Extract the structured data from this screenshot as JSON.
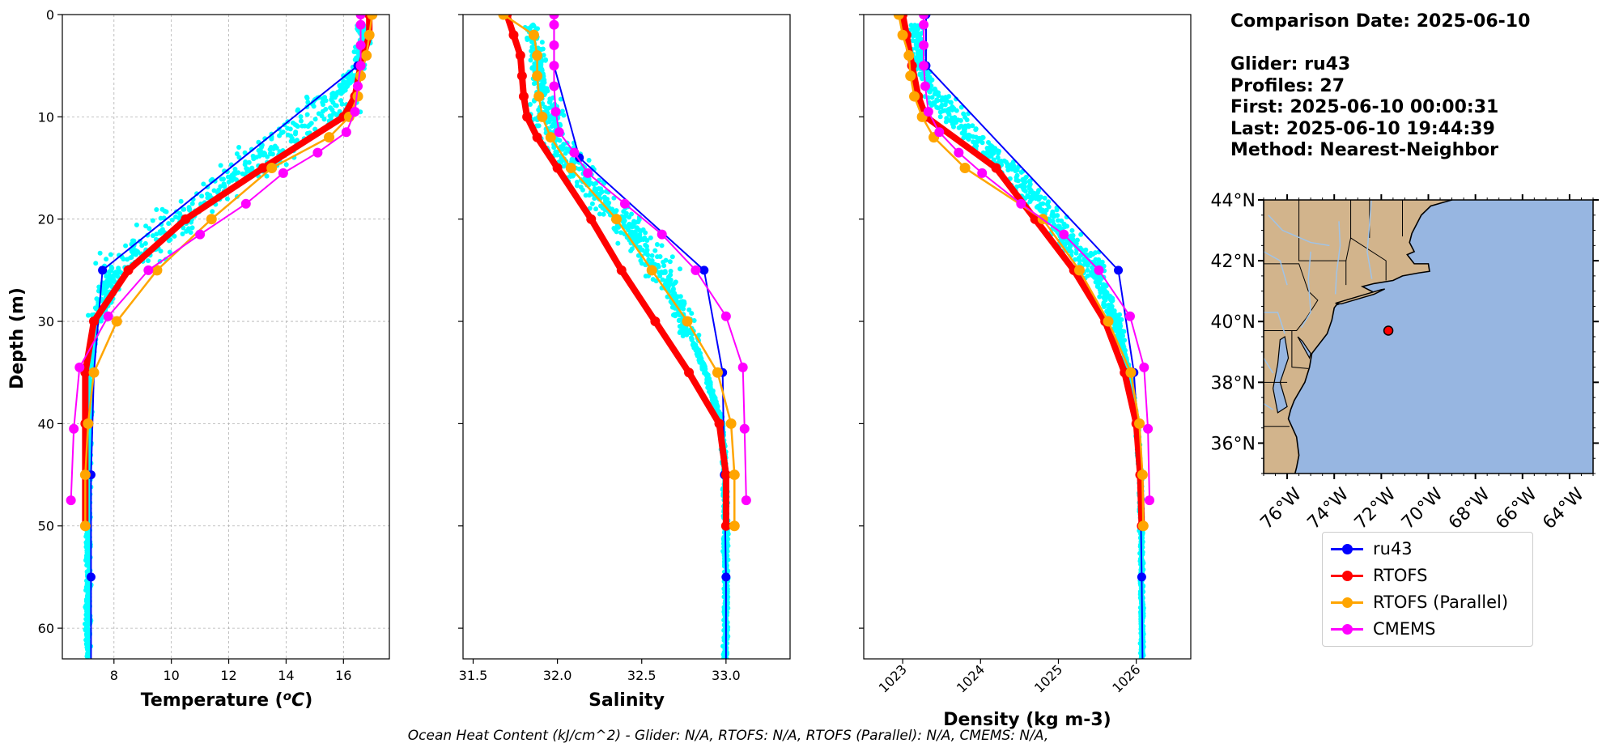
{
  "chart_data": [
    {
      "type": "line",
      "panel": "temperature",
      "xlabel": "Temperature ($^{o}C$)",
      "ylabel": "Depth (m)",
      "xlim": [
        6.2,
        17.6
      ],
      "ylim": [
        63,
        0
      ],
      "xticks": [
        8,
        10,
        12,
        14,
        16
      ],
      "yticks": [
        0,
        10,
        20,
        30,
        40,
        50,
        60
      ],
      "grid": true,
      "series": [
        {
          "name": "ru43",
          "color": "#0000ff",
          "depth": [
            5,
            25,
            35,
            45,
            55,
            63
          ],
          "values": [
            16.5,
            7.6,
            7.3,
            7.2,
            7.2,
            7.2
          ]
        },
        {
          "name": "RTOFS",
          "color": "#ff0000",
          "depth": [
            0,
            2,
            5,
            8,
            10,
            15,
            20,
            25,
            30,
            35,
            40,
            45,
            50
          ],
          "values": [
            16.9,
            16.9,
            16.6,
            16.4,
            16.0,
            13.2,
            10.5,
            8.5,
            7.3,
            7.0,
            7.0,
            7.0,
            7.0
          ]
        },
        {
          "name": "RTOFS (Parallel)",
          "color": "#ffa500",
          "depth": [
            0,
            2,
            4,
            6,
            8,
            10,
            12,
            15,
            20,
            25,
            30,
            35,
            40,
            45,
            50
          ],
          "values": [
            17.0,
            16.9,
            16.8,
            16.6,
            16.5,
            16.2,
            15.5,
            13.5,
            11.4,
            9.5,
            8.1,
            7.3,
            7.1,
            7.0,
            7.0
          ]
        },
        {
          "name": "CMEMS",
          "color": "#ff00ff",
          "depth": [
            0,
            1,
            3,
            5,
            7,
            9.5,
            11.5,
            13.5,
            15.5,
            18.5,
            21.5,
            25,
            29.5,
            34.5,
            40.5,
            47.5
          ],
          "values": [
            16.6,
            16.6,
            16.6,
            16.6,
            16.5,
            16.4,
            16.1,
            15.1,
            13.9,
            12.6,
            11.0,
            9.2,
            7.8,
            6.8,
            6.6,
            6.5
          ]
        }
      ],
      "glider_scatter": {
        "name": "glider profiles",
        "color": "#00ffff"
      }
    },
    {
      "type": "line",
      "panel": "salinity",
      "xlabel": "Salinity",
      "xlim": [
        31.44,
        33.38
      ],
      "ylim": [
        63,
        0
      ],
      "xticks": [
        31.5,
        32.0,
        32.5,
        33.0
      ],
      "grid": false,
      "series": [
        {
          "name": "ru43",
          "color": "#0000ff",
          "depth": [
            0,
            5,
            14,
            25,
            35,
            45,
            55,
            63
          ],
          "values": [
            31.98,
            31.98,
            32.13,
            32.87,
            32.98,
            32.99,
            33.0,
            33.0
          ]
        },
        {
          "name": "RTOFS",
          "color": "#ff0000",
          "depth": [
            0,
            2,
            4,
            6,
            8,
            10,
            12,
            15,
            20,
            25,
            30,
            35,
            40,
            45,
            50
          ],
          "values": [
            31.7,
            31.74,
            31.78,
            31.79,
            31.8,
            31.82,
            31.88,
            32.0,
            32.2,
            32.38,
            32.58,
            32.78,
            32.96,
            33.0,
            33.0
          ]
        },
        {
          "name": "RTOFS (Parallel)",
          "color": "#ffa500",
          "depth": [
            0,
            2,
            4,
            6,
            8,
            10,
            12,
            15,
            20,
            25,
            30,
            35,
            40,
            45,
            50
          ],
          "values": [
            31.68,
            31.86,
            31.88,
            31.88,
            31.89,
            31.91,
            31.96,
            32.08,
            32.35,
            32.56,
            32.77,
            32.95,
            33.03,
            33.05,
            33.05
          ]
        },
        {
          "name": "CMEMS",
          "color": "#ff00ff",
          "depth": [
            0,
            1,
            3,
            5,
            7,
            9.5,
            11.5,
            13.5,
            15.5,
            18.5,
            21.5,
            25,
            29.5,
            34.5,
            40.5,
            47.5
          ],
          "values": [
            31.98,
            31.98,
            31.98,
            31.98,
            31.98,
            31.99,
            32.01,
            32.1,
            32.18,
            32.4,
            32.62,
            32.82,
            33.0,
            33.1,
            33.11,
            33.12
          ]
        }
      ],
      "glider_scatter": {
        "name": "glider profiles",
        "color": "#00ffff"
      }
    },
    {
      "type": "line",
      "panel": "density",
      "xlabel": "Density (kg m-3)",
      "xlim": [
        1022.5,
        1026.7
      ],
      "ylim": [
        63,
        0
      ],
      "xticks": [
        1023,
        1024,
        1025,
        1026
      ],
      "grid": false,
      "series": [
        {
          "name": "ru43",
          "color": "#0000ff",
          "depth": [
            0,
            5,
            25,
            35,
            45,
            55,
            63
          ],
          "values": [
            1023.3,
            1023.3,
            1025.77,
            1025.97,
            1026.05,
            1026.07,
            1026.08
          ]
        },
        {
          "name": "RTOFS",
          "color": "#ff0000",
          "depth": [
            0,
            2,
            5,
            8,
            10,
            15,
            20,
            25,
            30,
            35,
            40,
            45,
            50
          ],
          "values": [
            1023.0,
            1023.05,
            1023.12,
            1023.2,
            1023.3,
            1024.2,
            1024.7,
            1025.2,
            1025.6,
            1025.85,
            1026.0,
            1026.05,
            1026.07
          ]
        },
        {
          "name": "RTOFS (Parallel)",
          "color": "#ffa500",
          "depth": [
            0,
            2,
            4,
            6,
            8,
            10,
            12,
            15,
            20,
            25,
            30,
            35,
            40,
            45,
            50
          ],
          "values": [
            1022.95,
            1023.0,
            1023.08,
            1023.1,
            1023.15,
            1023.25,
            1023.4,
            1023.8,
            1024.8,
            1025.27,
            1025.64,
            1025.93,
            1026.04,
            1026.08,
            1026.09
          ]
        },
        {
          "name": "CMEMS",
          "color": "#ff00ff",
          "depth": [
            0,
            1,
            3,
            5,
            7,
            9.5,
            11.5,
            13.5,
            15.5,
            18.5,
            21.5,
            25,
            29.5,
            34.5,
            40.5,
            47.5
          ],
          "values": [
            1023.27,
            1023.27,
            1023.27,
            1023.27,
            1023.29,
            1023.33,
            1023.47,
            1023.72,
            1024.02,
            1024.52,
            1025.07,
            1025.52,
            1025.92,
            1026.1,
            1026.15,
            1026.17
          ]
        }
      ],
      "glider_scatter": {
        "name": "glider profiles",
        "color": "#00ffff"
      }
    }
  ],
  "info": {
    "comparison_date": "Comparison Date: 2025-06-10",
    "glider": "Glider: ru43",
    "profiles": "Profiles: 27",
    "first": "First: 2025-06-10 00:00:31",
    "last": "Last: 2025-06-10 19:44:39",
    "method": "Method: Nearest-Neighbor"
  },
  "map": {
    "lon_range": [
      -77.0,
      -63.0
    ],
    "lat_range": [
      35.0,
      44.0
    ],
    "xticks": [
      "76°W",
      "74°W",
      "72°W",
      "70°W",
      "68°W",
      "66°W",
      "64°W"
    ],
    "yticks": [
      "44°N",
      "42°N",
      "40°N",
      "38°N",
      "36°N"
    ],
    "land_color": "#d2b48c",
    "ocean_color": "#97b6e1",
    "glider_location": {
      "lon": -71.7,
      "lat": 39.7
    }
  },
  "legend": {
    "items": [
      {
        "label": "ru43",
        "color": "#0000ff"
      },
      {
        "label": "RTOFS",
        "color": "#ff0000"
      },
      {
        "label": "RTOFS (Parallel)",
        "color": "#ffa500"
      },
      {
        "label": "CMEMS",
        "color": "#ff00ff"
      }
    ]
  },
  "footer": "Ocean Heat Content (kJ/cm^2) - Glider: N/A,  RTOFS: N/A,  RTOFS (Parallel): N/A,  CMEMS: N/A,"
}
